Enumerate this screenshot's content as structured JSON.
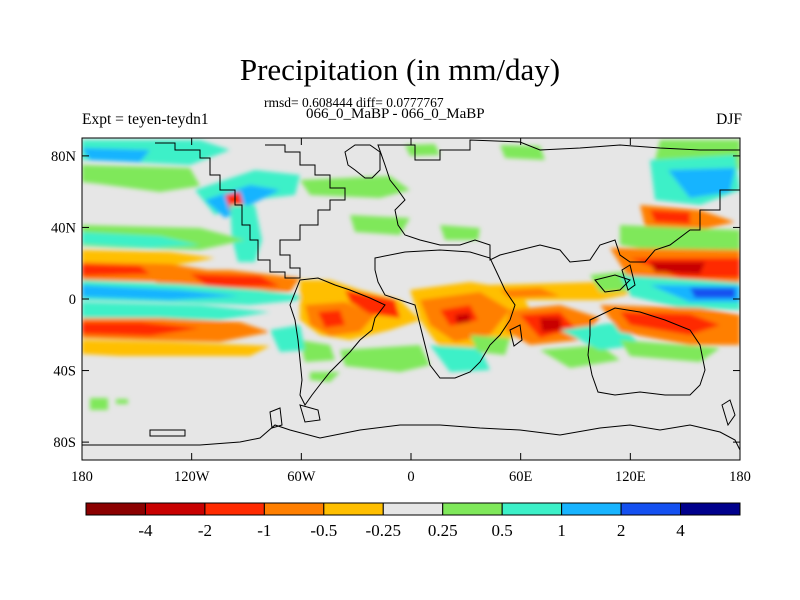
{
  "header": {
    "title": "Precipitation (in mm/day)",
    "stats": "rmsd= 0.608444 diff= 0.0777767",
    "comparison": "066_0_MaBP - 066_0_MaBP",
    "experiment": "Expt = teyen-teydn1",
    "season": "DJF"
  },
  "map": {
    "projection": "cylindrical equidistant",
    "lon_range": [
      -180,
      180
    ],
    "lat_range": [
      -90,
      90
    ],
    "lat_ticks": [
      {
        "value": 80,
        "label": "80N"
      },
      {
        "value": 40,
        "label": "40N"
      },
      {
        "value": 0,
        "label": "0"
      },
      {
        "value": -40,
        "label": "40S"
      },
      {
        "value": -80,
        "label": "80S"
      }
    ],
    "lon_ticks": [
      {
        "value": -180,
        "label": "180"
      },
      {
        "value": -120,
        "label": "120W"
      },
      {
        "value": -60,
        "label": "60W"
      },
      {
        "value": 0,
        "label": "0"
      },
      {
        "value": 60,
        "label": "60E"
      },
      {
        "value": 120,
        "label": "120E"
      },
      {
        "value": 180,
        "label": "180"
      }
    ],
    "background_color": "#e6e6e6",
    "coastline_color": "#000000"
  },
  "colorbar": {
    "colors": [
      "#8b0000",
      "#c80000",
      "#ff2a00",
      "#ff7f00",
      "#ffbf00",
      "#e6e6e6",
      "#7fe85a",
      "#3cf0c8",
      "#18b4ff",
      "#1450f0",
      "#00008c"
    ],
    "labels": [
      "-4",
      "-2",
      "-1",
      "-0.5",
      "-0.25",
      "0.25",
      "0.5",
      "1",
      "2",
      "4"
    ]
  }
}
